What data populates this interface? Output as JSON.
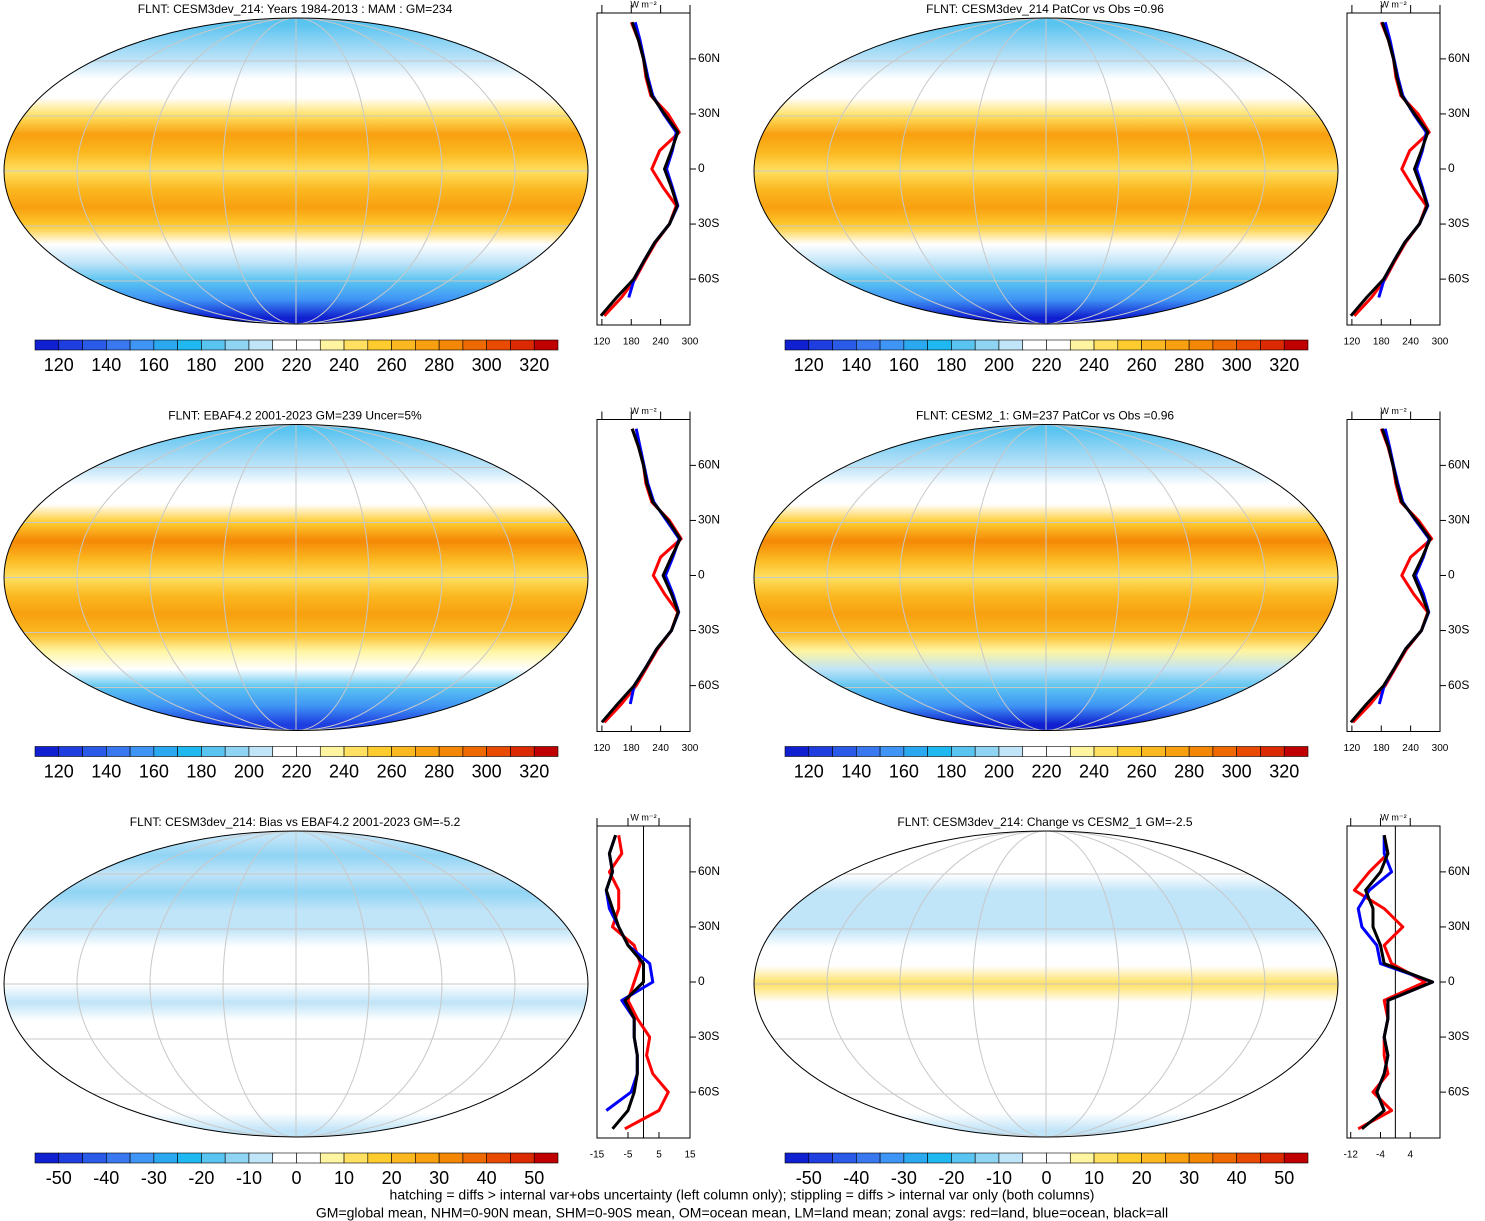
{
  "chart_data": [
    {
      "type": "map",
      "title": "FLNT: CESM3dev_214: Years 1984-2013 : MAM : GM=234",
      "colorbar": {
        "lim": [
          110,
          330
        ],
        "ticks": [
          120,
          140,
          160,
          180,
          200,
          220,
          240,
          260,
          280,
          300,
          320
        ],
        "colors": [
          "#1020d0",
          "#1e3ee0",
          "#2a5ae8",
          "#3a78f0",
          "#3f95f5",
          "#2aa8f0",
          "#20b8f0",
          "#5ac4f0",
          "#90d4f4",
          "#c0e4f8",
          "#ffffff",
          "#ffffff",
          "#fff5a0",
          "#ffe060",
          "#ffcc30",
          "#fbb820",
          "#f8a010",
          "#f48806",
          "#ee6a00",
          "#e84a00",
          "#dc2a00",
          "#c00000"
        ]
      }
    },
    {
      "type": "line",
      "xlabel": "W m⁻²",
      "xlim": [
        110,
        300
      ],
      "xticks": [
        120,
        180,
        240,
        300
      ],
      "ylim": [
        -85,
        85
      ],
      "yticks": [
        {
          "value": -60,
          "label": "60S"
        },
        {
          "value": -30,
          "label": "30S"
        },
        0,
        {
          "value": 30,
          "label": "30N"
        },
        {
          "value": 60,
          "label": "60N"
        }
      ],
      "y": [
        -80,
        -70,
        -60,
        -50,
        -40,
        -30,
        -20,
        -10,
        0,
        10,
        20,
        30,
        40,
        50,
        60,
        70,
        80
      ],
      "series": [
        {
          "color": "#ff0000",
          "values": [
            125,
            160,
            188,
            208,
            230,
            258,
            272,
            245,
            222,
            238,
            278,
            255,
            220,
            210,
            205,
            195,
            180
          ]
        },
        {
          "color": "#0000ff",
          "values": [
            null,
            175,
            186,
            206,
            228,
            258,
            275,
            264,
            252,
            264,
            272,
            246,
            224,
            214,
            206,
            198,
            188
          ]
        },
        {
          "color": "#000000",
          "values": [
            118,
            150,
            185,
            206,
            228,
            258,
            274,
            262,
            248,
            262,
            275,
            248,
            222,
            212,
            205,
            195,
            182
          ]
        }
      ]
    },
    {
      "type": "map",
      "title": "FLNT: CESM3dev_214 PatCor vs Obs =0.96",
      "colorbar": {
        "lim": [
          110,
          330
        ],
        "ticks": [
          120,
          140,
          160,
          180,
          200,
          220,
          240,
          260,
          280,
          300,
          320
        ],
        "colors": [
          "#1020d0",
          "#1e3ee0",
          "#2a5ae8",
          "#3a78f0",
          "#3f95f5",
          "#2aa8f0",
          "#20b8f0",
          "#5ac4f0",
          "#90d4f4",
          "#c0e4f8",
          "#ffffff",
          "#ffffff",
          "#fff5a0",
          "#ffe060",
          "#ffcc30",
          "#fbb820",
          "#f8a010",
          "#f48806",
          "#ee6a00",
          "#e84a00",
          "#dc2a00",
          "#c00000"
        ]
      }
    },
    {
      "type": "line",
      "xlabel": "W m⁻²",
      "xlim": [
        110,
        300
      ],
      "xticks": [
        120,
        180,
        240,
        300
      ],
      "ylim": [
        -85,
        85
      ],
      "yticks": [
        {
          "value": -60,
          "label": "60S"
        },
        {
          "value": -30,
          "label": "30S"
        },
        0,
        {
          "value": 30,
          "label": "30N"
        },
        {
          "value": 60,
          "label": "60N"
        }
      ],
      "y": [
        -80,
        -70,
        -60,
        -50,
        -40,
        -30,
        -20,
        -10,
        0,
        10,
        20,
        30,
        40,
        50,
        60,
        70,
        80
      ],
      "series": [
        {
          "color": "#ff0000",
          "values": [
            125,
            160,
            188,
            208,
            230,
            258,
            272,
            245,
            222,
            238,
            278,
            255,
            220,
            210,
            205,
            195,
            180
          ]
        },
        {
          "color": "#0000ff",
          "values": [
            null,
            175,
            186,
            206,
            228,
            258,
            275,
            264,
            252,
            264,
            272,
            246,
            224,
            214,
            206,
            198,
            188
          ]
        },
        {
          "color": "#000000",
          "values": [
            118,
            150,
            185,
            206,
            228,
            258,
            274,
            262,
            248,
            262,
            275,
            248,
            222,
            212,
            205,
            195,
            182
          ]
        }
      ]
    },
    {
      "type": "map",
      "title": "FLNT: EBAF4.2 2001-2023 GM=239 Uncer=5%",
      "colorbar": {
        "lim": [
          110,
          330
        ],
        "ticks": [
          120,
          140,
          160,
          180,
          200,
          220,
          240,
          260,
          280,
          300,
          320
        ],
        "colors": [
          "#1020d0",
          "#1e3ee0",
          "#2a5ae8",
          "#3a78f0",
          "#3f95f5",
          "#2aa8f0",
          "#20b8f0",
          "#5ac4f0",
          "#90d4f4",
          "#c0e4f8",
          "#ffffff",
          "#ffffff",
          "#fff5a0",
          "#ffe060",
          "#ffcc30",
          "#fbb820",
          "#f8a010",
          "#f48806",
          "#ee6a00",
          "#e84a00",
          "#dc2a00",
          "#c00000"
        ]
      }
    },
    {
      "type": "line",
      "xlabel": "W m⁻²",
      "xlim": [
        110,
        300
      ],
      "xticks": [
        120,
        180,
        240,
        300
      ],
      "ylim": [
        -85,
        85
      ],
      "yticks": [
        {
          "value": -60,
          "label": "60S"
        },
        {
          "value": -30,
          "label": "30S"
        },
        0,
        {
          "value": 30,
          "label": "30N"
        },
        {
          "value": 60,
          "label": "60N"
        }
      ],
      "y": [
        -80,
        -70,
        -60,
        -50,
        -40,
        -30,
        -20,
        -10,
        0,
        10,
        20,
        30,
        40,
        50,
        60,
        70,
        80
      ],
      "series": [
        {
          "color": "#ff0000",
          "values": [
            125,
            160,
            190,
            212,
            234,
            262,
            275,
            248,
            225,
            240,
            282,
            258,
            222,
            210,
            205,
            195,
            182
          ]
        },
        {
          "color": "#0000ff",
          "values": [
            null,
            178,
            186,
            210,
            232,
            262,
            277,
            265,
            250,
            265,
            278,
            252,
            226,
            214,
            206,
            198,
            190
          ]
        },
        {
          "color": "#000000",
          "values": [
            120,
            152,
            186,
            210,
            232,
            262,
            276,
            262,
            245,
            262,
            280,
            255,
            224,
            212,
            205,
            195,
            182
          ]
        }
      ]
    },
    {
      "type": "map",
      "title": "FLNT: CESM2_1: GM=237 PatCor vs Obs =0.96",
      "colorbar": {
        "lim": [
          110,
          330
        ],
        "ticks": [
          120,
          140,
          160,
          180,
          200,
          220,
          240,
          260,
          280,
          300,
          320
        ],
        "colors": [
          "#1020d0",
          "#1e3ee0",
          "#2a5ae8",
          "#3a78f0",
          "#3f95f5",
          "#2aa8f0",
          "#20b8f0",
          "#5ac4f0",
          "#90d4f4",
          "#c0e4f8",
          "#ffffff",
          "#ffffff",
          "#fff5a0",
          "#ffe060",
          "#ffcc30",
          "#fbb820",
          "#f8a010",
          "#f48806",
          "#ee6a00",
          "#e84a00",
          "#dc2a00",
          "#c00000"
        ]
      }
    },
    {
      "type": "line",
      "xlabel": "W m⁻²",
      "xlim": [
        110,
        300
      ],
      "xticks": [
        120,
        180,
        240,
        300
      ],
      "ylim": [
        -85,
        85
      ],
      "yticks": [
        {
          "value": -60,
          "label": "60S"
        },
        {
          "value": -30,
          "label": "30S"
        },
        0,
        {
          "value": 30,
          "label": "30N"
        },
        {
          "value": 60,
          "label": "60N"
        }
      ],
      "y": [
        -80,
        -70,
        -60,
        -50,
        -40,
        -30,
        -20,
        -10,
        0,
        10,
        20,
        30,
        40,
        50,
        60,
        70,
        80
      ],
      "series": [
        {
          "color": "#ff0000",
          "values": [
            122,
            158,
            188,
            210,
            232,
            262,
            275,
            246,
            222,
            240,
            283,
            256,
            220,
            210,
            204,
            194,
            180
          ]
        },
        {
          "color": "#0000ff",
          "values": [
            null,
            176,
            186,
            208,
            230,
            262,
            277,
            266,
            250,
            266,
            278,
            250,
            224,
            214,
            205,
            197,
            188
          ]
        },
        {
          "color": "#000000",
          "values": [
            118,
            150,
            185,
            208,
            230,
            262,
            276,
            262,
            246,
            264,
            280,
            252,
            222,
            212,
            204,
            195,
            182
          ]
        }
      ]
    },
    {
      "type": "map",
      "title": "FLNT: CESM3dev_214: Bias vs EBAF4.2 2001-2023 GM=-5.2",
      "colorbar": {
        "lim": [
          -55,
          55
        ],
        "ticks": [
          -50,
          -40,
          -30,
          -20,
          -10,
          0,
          10,
          20,
          30,
          40,
          50
        ],
        "colors": [
          "#1020d0",
          "#1e3ee0",
          "#2a5ae8",
          "#3a78f0",
          "#3f95f5",
          "#2aa8f0",
          "#20b8f0",
          "#5ac4f0",
          "#90d4f4",
          "#c0e4f8",
          "#ffffff",
          "#ffffff",
          "#fff5a0",
          "#ffe060",
          "#ffcc30",
          "#fbb820",
          "#f8a010",
          "#f48806",
          "#ee6a00",
          "#e84a00",
          "#dc2a00",
          "#c00000"
        ]
      }
    },
    {
      "type": "line",
      "xlabel": "W m⁻²",
      "xlim": [
        -15,
        15
      ],
      "xticks": [
        -15,
        -5,
        5,
        15
      ],
      "ylim": [
        -85,
        85
      ],
      "yticks": [
        {
          "value": -60,
          "label": "60S"
        },
        {
          "value": -30,
          "label": "30S"
        },
        0,
        {
          "value": 30,
          "label": "30N"
        },
        {
          "value": 60,
          "label": "60N"
        }
      ],
      "y": [
        -80,
        -70,
        -60,
        -50,
        -40,
        -30,
        -20,
        -10,
        0,
        10,
        20,
        30,
        40,
        50,
        60,
        70,
        80
      ],
      "series": [
        {
          "color": "#ff0000",
          "values": [
            -6,
            5,
            8,
            3,
            1,
            2,
            -2,
            -5,
            -3,
            -1,
            -3,
            -10,
            -8,
            -8,
            -11,
            -7,
            -8
          ]
        },
        {
          "color": "#0000ff",
          "values": [
            null,
            -12,
            -4,
            -2,
            -2,
            -3,
            -3,
            -7,
            3,
            2,
            -5,
            -8,
            -11,
            -12,
            -10,
            -11,
            -9
          ]
        },
        {
          "color": "#000000",
          "values": [
            -10,
            -5,
            -3,
            -2,
            -2,
            -3,
            -3,
            -6,
            0,
            0,
            -5,
            -8,
            -10,
            -12,
            -10,
            -11,
            -9
          ]
        }
      ]
    },
    {
      "type": "map",
      "title": "FLNT: CESM3dev_214: Change vs CESM2_1 GM=-2.5",
      "colorbar": {
        "lim": [
          -55,
          55
        ],
        "ticks": [
          -50,
          -40,
          -30,
          -20,
          -10,
          0,
          10,
          20,
          30,
          40,
          50
        ],
        "colors": [
          "#1020d0",
          "#1e3ee0",
          "#2a5ae8",
          "#3a78f0",
          "#3f95f5",
          "#2aa8f0",
          "#20b8f0",
          "#5ac4f0",
          "#90d4f4",
          "#c0e4f8",
          "#ffffff",
          "#ffffff",
          "#fff5a0",
          "#ffe060",
          "#ffcc30",
          "#fbb820",
          "#f8a010",
          "#f48806",
          "#ee6a00",
          "#e84a00",
          "#dc2a00",
          "#c00000"
        ]
      }
    },
    {
      "type": "line",
      "xlabel": "W m⁻²",
      "xlim": [
        -13,
        12
      ],
      "xticks": [
        -12,
        -4,
        4
      ],
      "ylim": [
        -85,
        85
      ],
      "yticks": [
        {
          "value": -60,
          "label": "60S"
        },
        {
          "value": -30,
          "label": "30S"
        },
        0,
        {
          "value": 30,
          "label": "30N"
        },
        {
          "value": 60,
          "label": "60N"
        }
      ],
      "y": [
        -80,
        -70,
        -60,
        -50,
        -40,
        -30,
        -20,
        -10,
        0,
        10,
        20,
        30,
        40,
        50,
        60,
        70,
        80
      ],
      "series": [
        {
          "color": "#ff0000",
          "values": [
            -10,
            -1,
            -6,
            -2,
            -3,
            -3,
            -2,
            -3,
            8,
            -1,
            -3,
            2,
            -3,
            -11,
            -7,
            -2,
            -3
          ]
        },
        {
          "color": "#0000ff",
          "values": [
            null,
            -3,
            -5,
            -3,
            -2,
            -3,
            -2,
            -2,
            10,
            -4,
            -5,
            -9,
            -10,
            -7,
            -1,
            -3,
            -3
          ]
        },
        {
          "color": "#000000",
          "values": [
            -9,
            -3,
            -5,
            -3,
            -2,
            -3,
            -2,
            -2,
            10,
            -3,
            -4,
            -6,
            -6,
            -8,
            -4,
            -2,
            -3
          ]
        }
      ]
    }
  ],
  "footnotes": [
    "hatching = diffs > internal var+obs uncertainty (left column only); stippling = diffs > internal var only (both columns)",
    "GM=global mean, NHM=0-90N mean, SHM=0-90S mean, OM=ocean mean, LM=land mean; zonal avgs: red=land, blue=ocean, black=all"
  ]
}
